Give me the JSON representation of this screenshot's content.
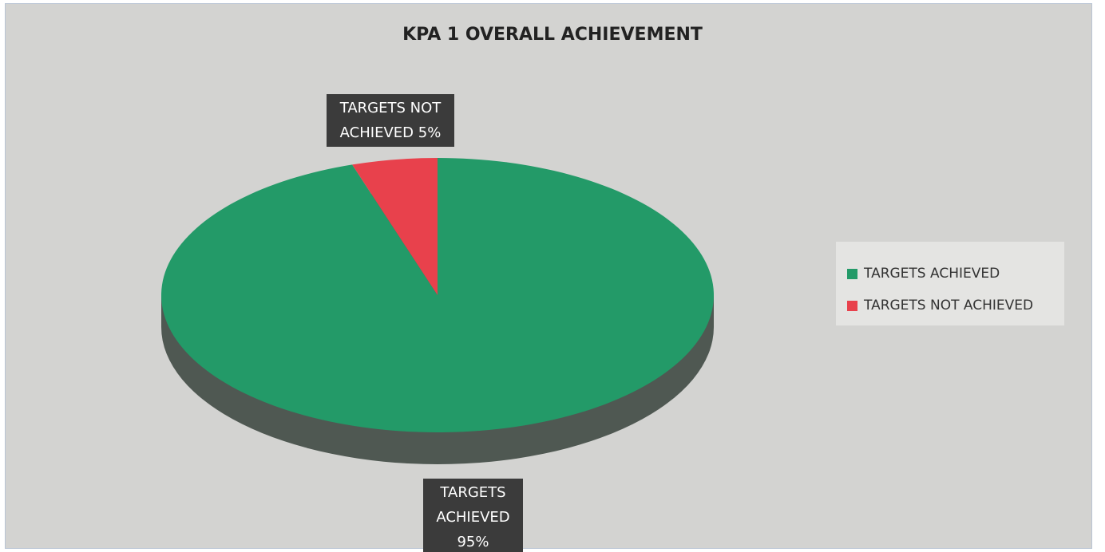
{
  "chart_data": {
    "type": "pie",
    "title": "KPA 1 OVERALL ACHIEVEMENT",
    "categories": [
      "TARGETS ACHIEVED",
      "TARGETS NOT ACHIEVED"
    ],
    "values": [
      95,
      5
    ],
    "value_labels": [
      "95%",
      "5%"
    ],
    "colors": [
      "#239a68",
      "#e8414c"
    ],
    "legend": "right"
  }
}
